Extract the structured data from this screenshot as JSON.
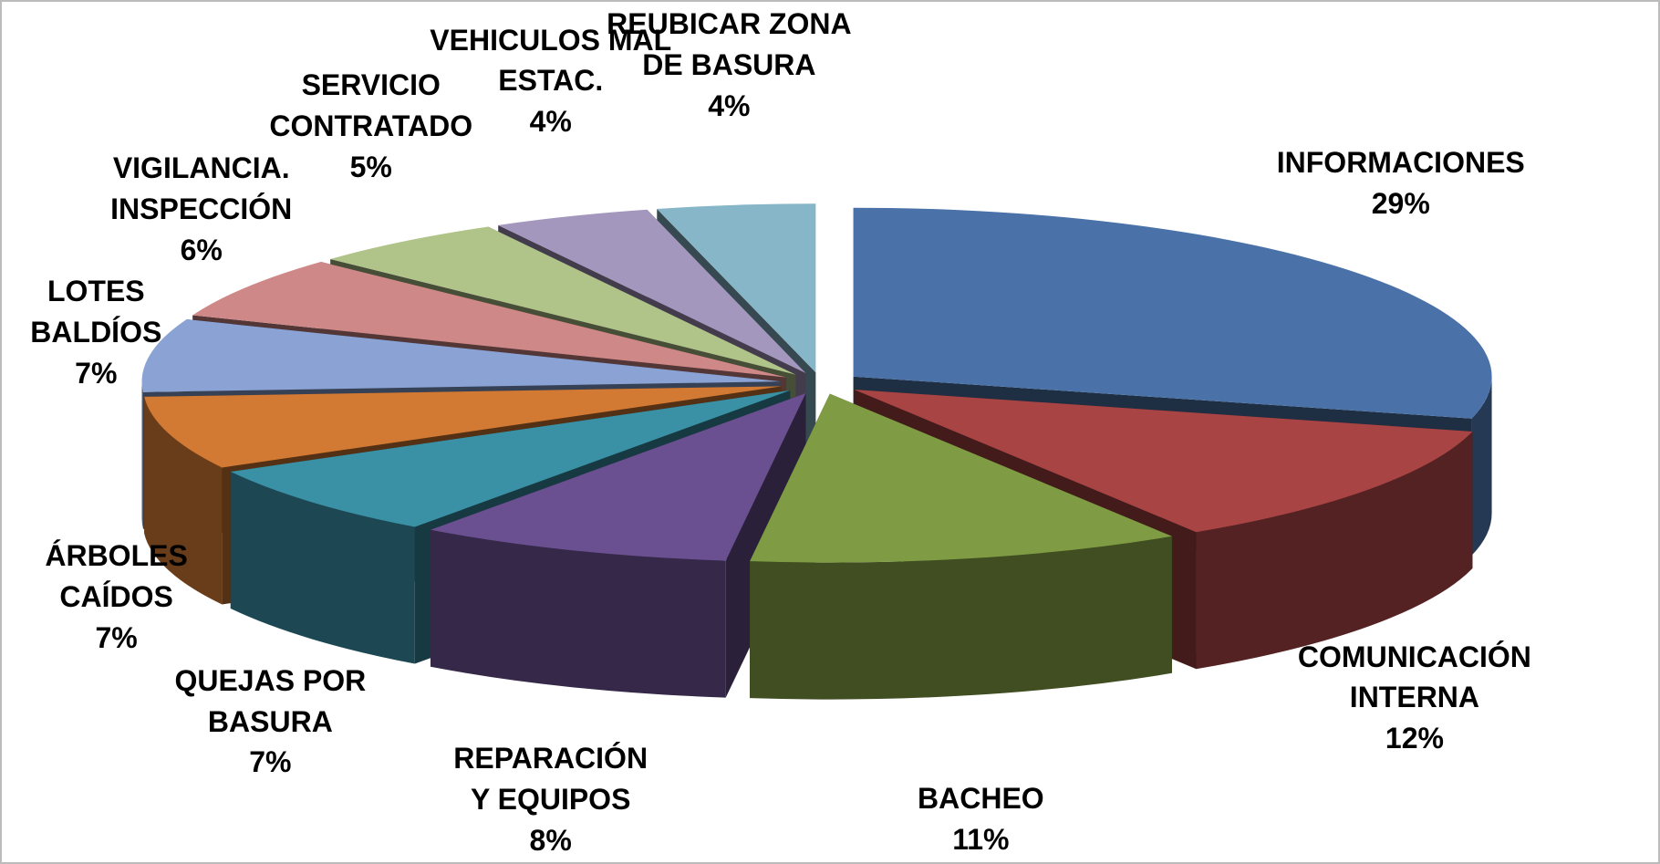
{
  "chart_data": {
    "type": "pie3d",
    "categories": [
      "INFORMACIONES",
      "COMUNICACIÓN\nINTERNA",
      "BACHEO",
      "REPARACIÓN\nY EQUIPOS",
      "QUEJAS POR\nBASURA",
      "ÁRBOLES\nCAÍDOS",
      "LOTES\nBALDÍOS",
      "VIGILANCIA.\nINSPECCIÓN",
      "SERVICIO\nCONTRATADO",
      "VEHICULOS MAL\nESTAC.",
      "REUBICAR ZONA\nDE BASURA"
    ],
    "values": [
      29,
      12,
      11,
      8,
      7,
      7,
      7,
      6,
      5,
      4,
      4
    ],
    "value_labels": [
      "29%",
      "12%",
      "11%",
      "8%",
      "7%",
      "7%",
      "7%",
      "6%",
      "5%",
      "4%",
      "4%"
    ],
    "colors": [
      "#4a72a8",
      "#a84444",
      "#7f9c44",
      "#6a5090",
      "#3a90a5",
      "#d27a34",
      "#8aa3d4",
      "#cf8888",
      "#b0c48a",
      "#a497be",
      "#86b6c8"
    ]
  }
}
